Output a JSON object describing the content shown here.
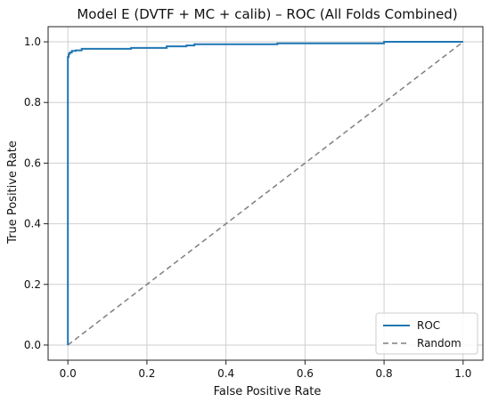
{
  "chart_data": {
    "type": "line",
    "title": "Model E (DVTF + MC + calib) – ROC (All Folds Combined)",
    "xlabel": "False Positive Rate",
    "ylabel": "True Positive Rate",
    "xlim": [
      -0.05,
      1.05
    ],
    "ylim": [
      -0.05,
      1.05
    ],
    "xticks": [
      "0.0",
      "0.2",
      "0.4",
      "0.6",
      "0.8",
      "1.0"
    ],
    "yticks": [
      "0.0",
      "0.2",
      "0.4",
      "0.6",
      "0.8",
      "1.0"
    ],
    "grid": true,
    "legend_position": "bottom-right",
    "series": [
      {
        "name": "ROC",
        "color": "#1f77b4",
        "style": "solid",
        "step": true,
        "x": [
          0.0,
          0.0,
          0.0,
          0.002,
          0.002,
          0.005,
          0.005,
          0.01,
          0.01,
          0.02,
          0.02,
          0.035,
          0.035,
          0.16,
          0.16,
          0.25,
          0.25,
          0.3,
          0.3,
          0.32,
          0.32,
          0.53,
          0.53,
          0.8,
          0.8,
          1.0
        ],
        "y": [
          0.0,
          0.78,
          0.95,
          0.95,
          0.96,
          0.96,
          0.965,
          0.965,
          0.97,
          0.97,
          0.972,
          0.972,
          0.977,
          0.977,
          0.98,
          0.98,
          0.985,
          0.985,
          0.988,
          0.988,
          0.992,
          0.992,
          0.995,
          0.995,
          1.0,
          1.0
        ]
      },
      {
        "name": "Random",
        "color": "#7f7f7f",
        "style": "dashed",
        "x": [
          0.0,
          1.0
        ],
        "y": [
          0.0,
          1.0
        ]
      }
    ]
  }
}
